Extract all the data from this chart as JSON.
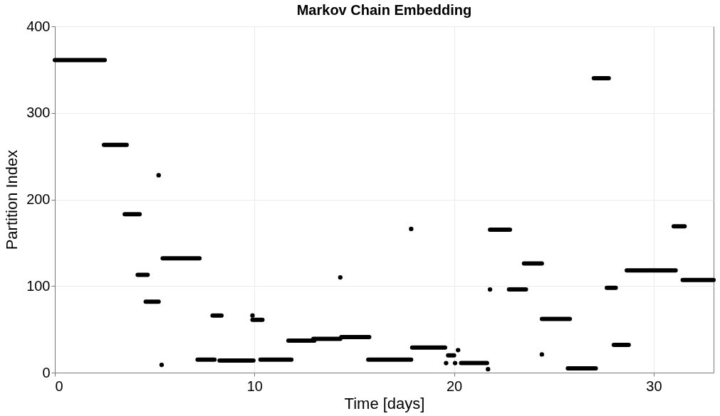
{
  "chart_data": {
    "type": "line",
    "title": "Markov Chain Embedding",
    "xlabel": "Time [days]",
    "ylabel": "Partition Index",
    "xlim": [
      0,
      33
    ],
    "ylim": [
      0,
      400
    ],
    "xticks": [
      0,
      10,
      20,
      30
    ],
    "yticks": [
      0,
      100,
      200,
      300,
      400
    ],
    "grid": true,
    "line_style": "solid",
    "series": [
      {
        "color": "#000000",
        "x": [
          0,
          2.5,
          null,
          2.46,
          3.6,
          null,
          3.5,
          4.25,
          null,
          4.15,
          4.65,
          null,
          4.55,
          5.2,
          null,
          5.4,
          7.25,
          null,
          7.15,
          8.0,
          null,
          7.9,
          8.35,
          null,
          8.25,
          9.95,
          null,
          9.9,
          10.4,
          null,
          10.3,
          11.85,
          null,
          11.7,
          13.0,
          null,
          12.95,
          14.3,
          null,
          14.35,
          15.75,
          null,
          15.7,
          17.85,
          null,
          17.9,
          19.55,
          null,
          19.7,
          20.0,
          null,
          20.35,
          21.65,
          null,
          21.8,
          22.8,
          null,
          22.75,
          23.6,
          null,
          23.5,
          24.4,
          null,
          24.4,
          25.8,
          null,
          25.7,
          27.1,
          null,
          27.0,
          27.75,
          null,
          27.65,
          28.1,
          null,
          28.0,
          28.75,
          null,
          28.65,
          31.1,
          null,
          31.0,
          31.55,
          null,
          31.45,
          33.0
        ],
        "values": [
          361,
          361,
          null,
          263,
          263,
          null,
          183,
          183,
          null,
          113,
          113,
          null,
          82,
          82,
          null,
          132,
          132,
          null,
          15,
          15,
          null,
          66,
          66,
          null,
          14,
          14,
          null,
          61,
          61,
          null,
          15,
          15,
          null,
          37,
          37,
          null,
          39,
          39,
          null,
          41,
          41,
          null,
          15,
          15,
          null,
          29,
          29,
          null,
          20,
          20,
          null,
          11,
          11,
          null,
          165,
          165,
          null,
          96,
          96,
          null,
          126,
          126,
          null,
          62,
          62,
          null,
          5,
          5,
          null,
          340,
          340,
          null,
          98,
          98,
          null,
          32,
          32,
          null,
          118,
          118,
          null,
          169,
          169,
          null,
          107,
          107
        ]
      },
      {
        "type": "scatter",
        "marker": "circle",
        "color": "#000000",
        "x": [
          5.2,
          5.35,
          9.9,
          14.3,
          17.85,
          19.6,
          20.05,
          20.2,
          21.7,
          21.8,
          24.4
        ],
        "values": [
          228,
          9,
          66,
          110,
          166,
          11,
          11,
          26,
          4,
          96,
          21
        ]
      }
    ]
  }
}
